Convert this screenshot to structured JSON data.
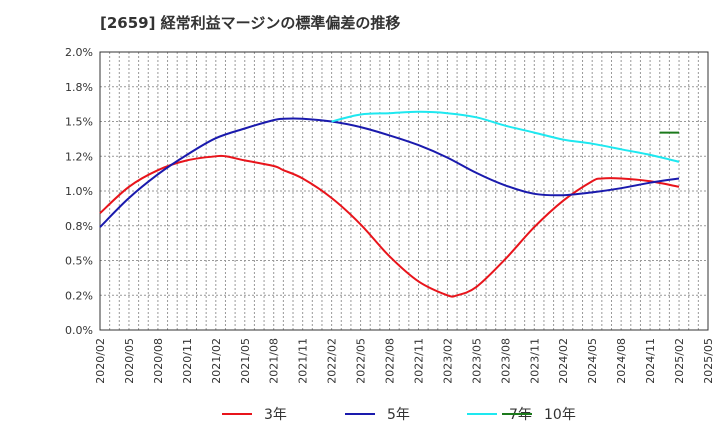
{
  "chart_data": {
    "type": "line",
    "title": "[2659]  経常利益マージンの標準偏差の推移",
    "xlabel": "",
    "ylabel": "",
    "ylim": [
      0.0,
      2.0
    ],
    "y_ticks": [
      "0.0%",
      "0.2%",
      "0.5%",
      "0.8%",
      "1.0%",
      "1.2%",
      "1.5%",
      "1.8%",
      "2.0%"
    ],
    "x_ticks": [
      "2020/02",
      "2020/05",
      "2020/08",
      "2020/11",
      "2021/02",
      "2021/05",
      "2021/08",
      "2021/11",
      "2022/02",
      "2022/05",
      "2022/08",
      "2022/11",
      "2023/02",
      "2023/05",
      "2023/08",
      "2023/11",
      "2024/02",
      "2024/05",
      "2024/08",
      "2024/11",
      "2025/02",
      "2025/05"
    ],
    "grid": true,
    "legend_position": "bottom",
    "series": [
      {
        "name": "3年",
        "color": "#e8141b",
        "x": [
          "2020/02",
          "2020/05",
          "2020/08",
          "2020/11",
          "2021/02",
          "2021/03",
          "2021/05",
          "2021/08",
          "2021/09",
          "2021/11",
          "2022/02",
          "2022/05",
          "2022/08",
          "2022/11",
          "2023/02",
          "2023/03",
          "2023/05",
          "2023/08",
          "2023/11",
          "2024/02",
          "2024/05",
          "2024/06",
          "2024/08",
          "2024/11",
          "2025/02"
        ],
        "values": [
          0.84,
          1.03,
          1.15,
          1.22,
          1.25,
          1.25,
          1.22,
          1.18,
          1.15,
          1.09,
          0.95,
          0.76,
          0.53,
          0.35,
          0.25,
          0.25,
          0.31,
          0.51,
          0.74,
          0.93,
          1.07,
          1.09,
          1.09,
          1.07,
          1.03
        ]
      },
      {
        "name": "5年",
        "color": "#1a1aad",
        "x": [
          "2020/02",
          "2020/05",
          "2020/08",
          "2020/11",
          "2021/02",
          "2021/05",
          "2021/08",
          "2021/09",
          "2021/11",
          "2022/02",
          "2022/05",
          "2022/08",
          "2022/11",
          "2023/02",
          "2023/05",
          "2023/08",
          "2023/11",
          "2024/02",
          "2024/05",
          "2024/08",
          "2024/11",
          "2025/02"
        ],
        "values": [
          0.74,
          0.95,
          1.12,
          1.26,
          1.38,
          1.45,
          1.51,
          1.52,
          1.52,
          1.5,
          1.46,
          1.4,
          1.33,
          1.24,
          1.13,
          1.04,
          0.98,
          0.97,
          0.99,
          1.02,
          1.06,
          1.09
        ]
      },
      {
        "name": "7年",
        "color": "#1ee8f0",
        "x": [
          "2022/02",
          "2022/05",
          "2022/08",
          "2022/11",
          "2023/02",
          "2023/05",
          "2023/08",
          "2023/11",
          "2024/02",
          "2024/05",
          "2024/08",
          "2024/11",
          "2025/02"
        ],
        "values": [
          1.5,
          1.55,
          1.56,
          1.57,
          1.56,
          1.53,
          1.47,
          1.42,
          1.37,
          1.34,
          1.3,
          1.26,
          1.21
        ]
      },
      {
        "name": "10年",
        "color": "#1c7a1c",
        "x": [
          "2024/12",
          "2025/02"
        ],
        "values": [
          1.42,
          1.42
        ]
      }
    ]
  }
}
